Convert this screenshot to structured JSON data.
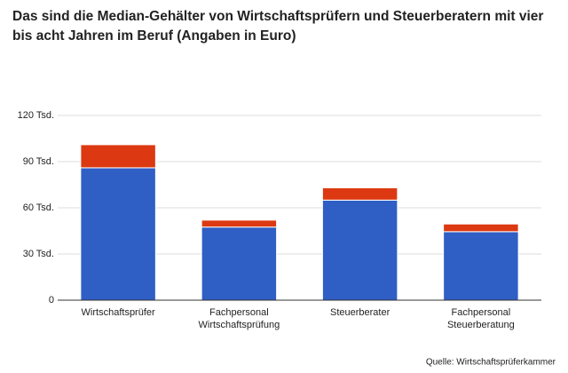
{
  "chart_data": {
    "type": "stacked_bar",
    "title": "Das sind die Median-Gehälter von Wirtschaftsprüfern und Steuerberatern mit vier bis acht Jahren im Beruf (Angaben in Euro)",
    "source": "Quelle: Wirtschaftsprüferkammer",
    "categories": [
      [
        "Wirtschaftsprüfer"
      ],
      [
        "Fachpersonal",
        "Wirtschaftsprüfung"
      ],
      [
        "Steuerberater"
      ],
      [
        "Fachpersonal",
        "Steuerberatung"
      ]
    ],
    "series": [
      {
        "color": "#2f5ec4",
        "values": [
          86000,
          47500,
          65000,
          44500
        ]
      },
      {
        "color": "#dc3912",
        "values": [
          15000,
          4500,
          8000,
          5000
        ]
      }
    ],
    "ylim": [
      0,
      120000
    ],
    "yticks": [
      0,
      {
        "value": 30000,
        "label": "30 Tsd."
      },
      {
        "value": 60000,
        "label": "60 Tsd."
      },
      {
        "value": 90000,
        "label": "90 Tsd."
      },
      {
        "value": 120000,
        "label": "120 Tsd."
      }
    ],
    "grid": true
  }
}
